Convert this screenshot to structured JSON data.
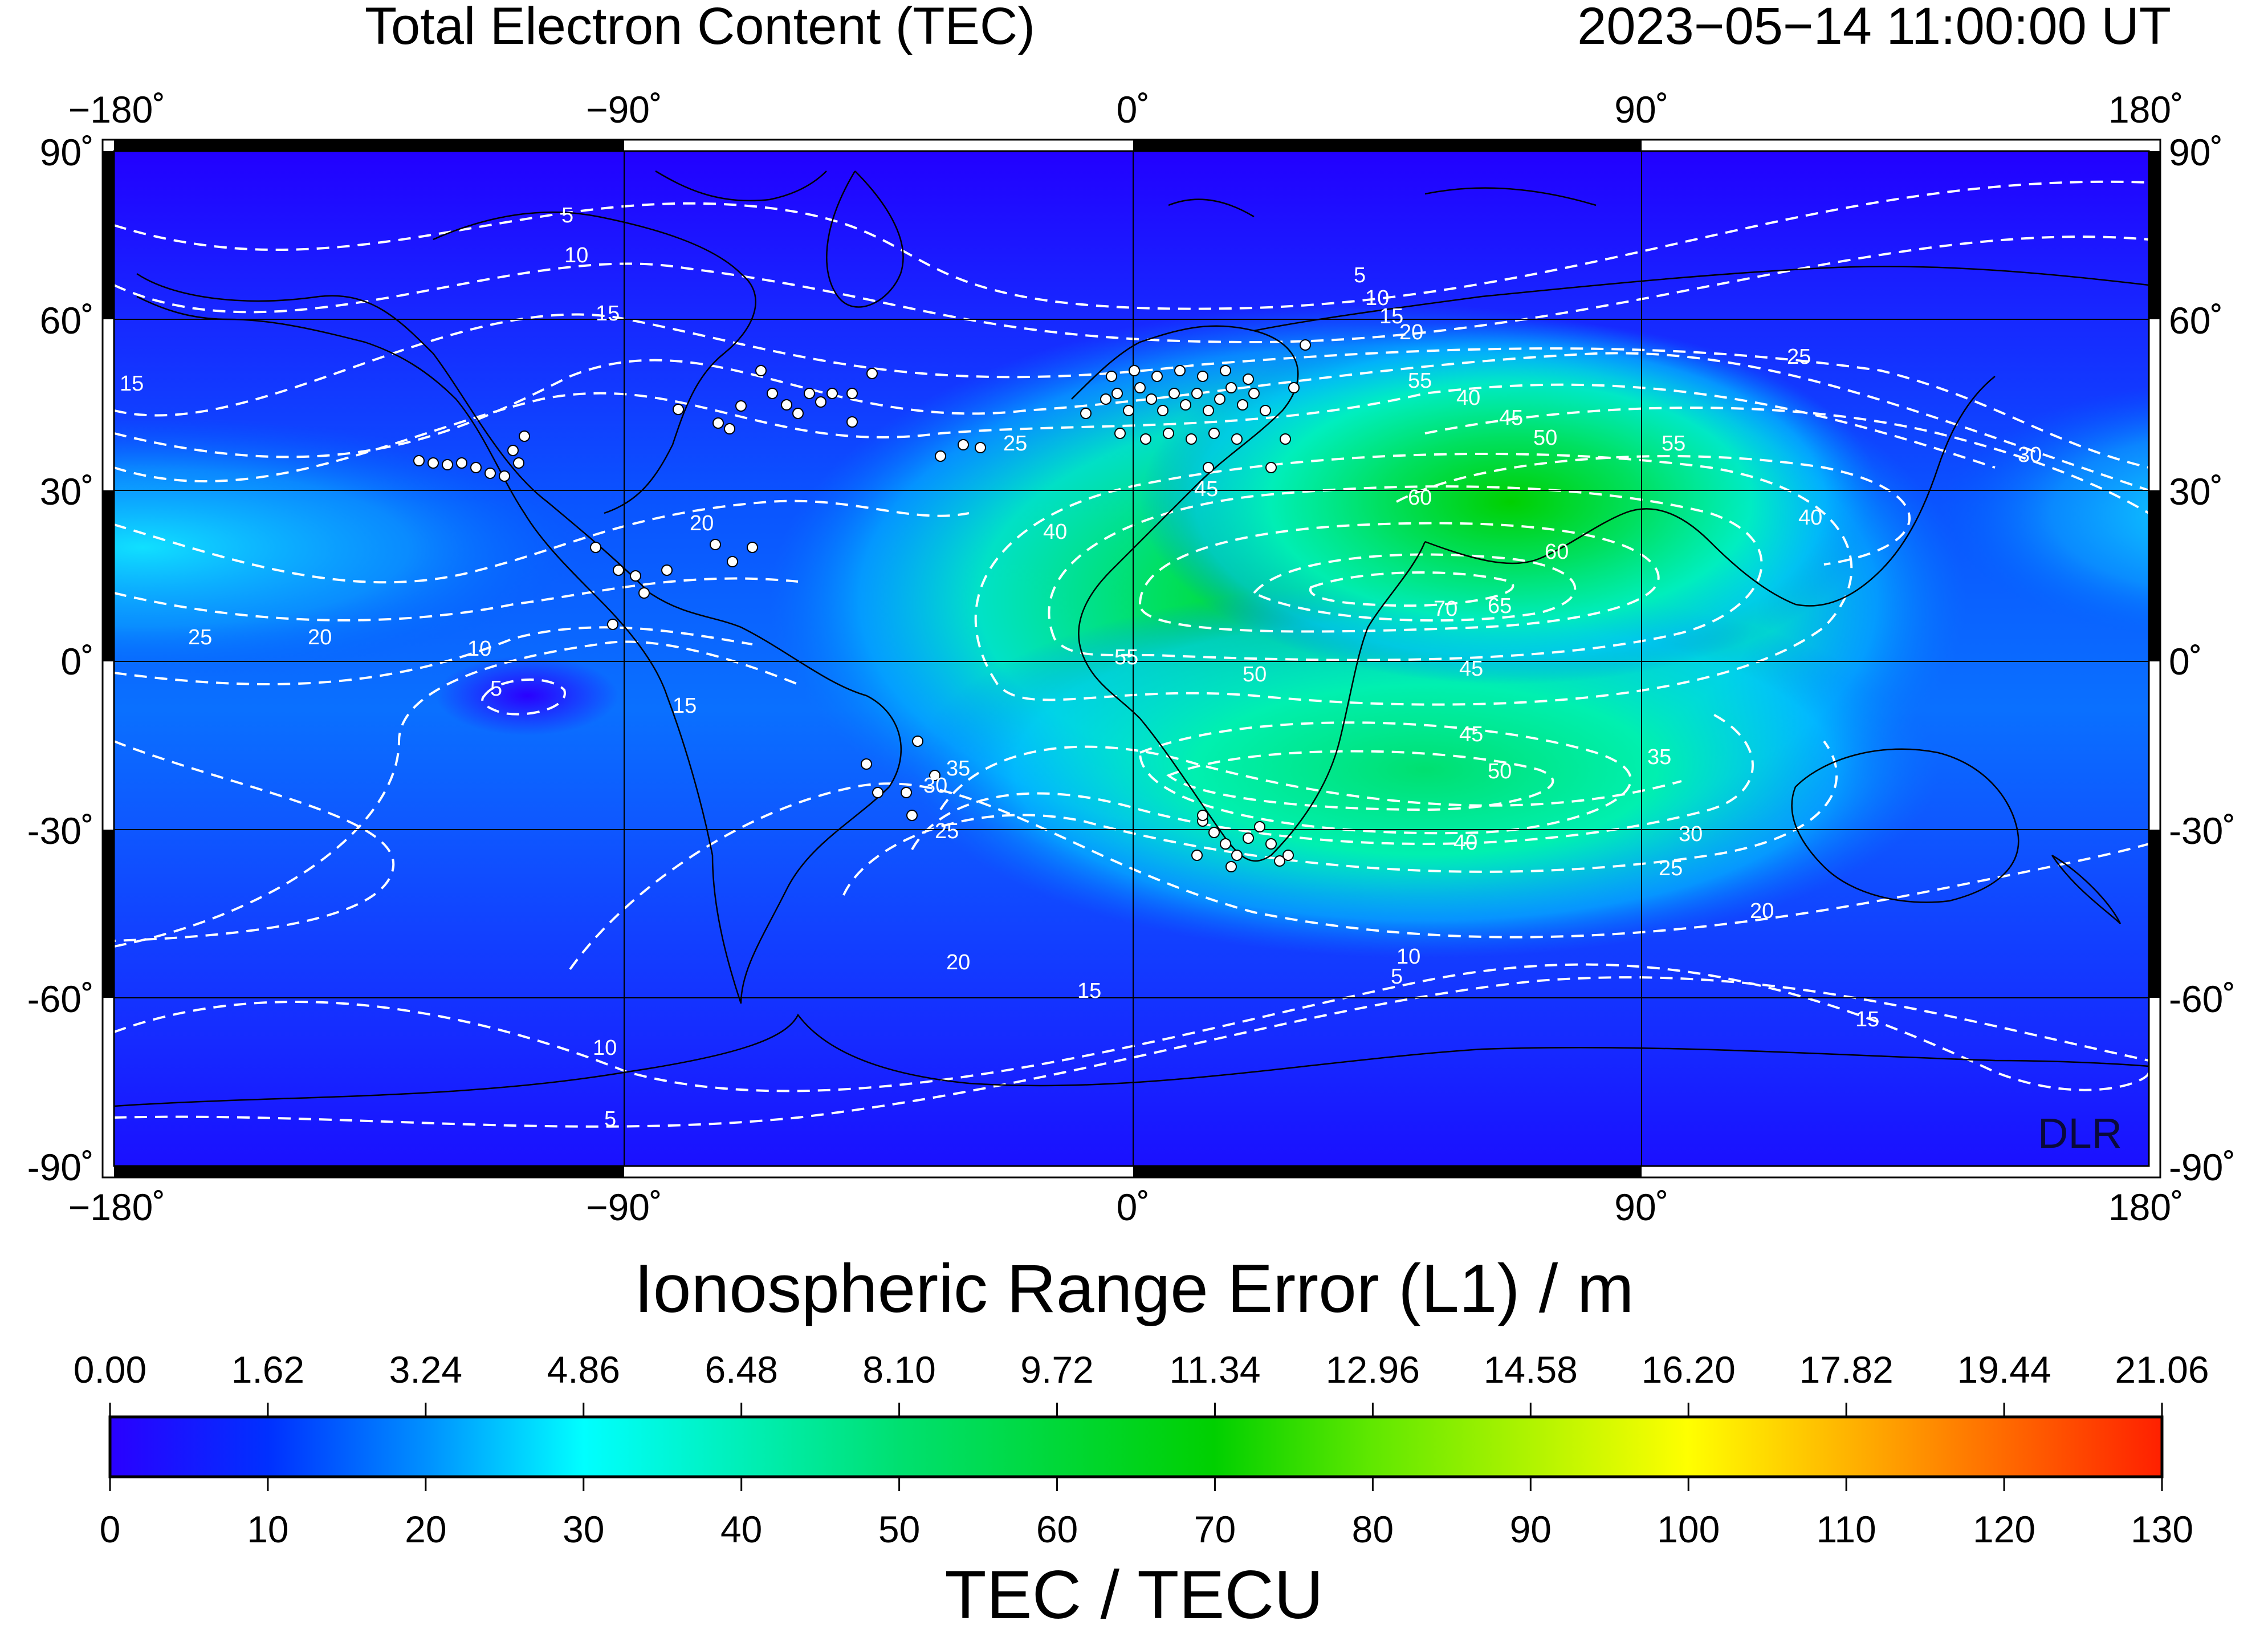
{
  "header": {
    "title": "Total Electron Content (TEC)",
    "timestamp": "2023−05−14  11:00:00 UT"
  },
  "map": {
    "lon_ticks": [
      "−180˚",
      "−90˚",
      "0˚",
      "90˚",
      "180˚"
    ],
    "lat_ticks": [
      "90˚",
      "60˚",
      "30˚",
      "0˚",
      "-30˚",
      "-60˚",
      "-90˚"
    ],
    "watermark": "DLR",
    "contour_levels": [
      "5",
      "10",
      "15",
      "20",
      "25",
      "30",
      "35",
      "40",
      "45",
      "50",
      "55",
      "60",
      "65",
      "70"
    ],
    "contour_color": "#ffffff"
  },
  "colorbar": {
    "range_title": "Ionospheric Range Error (L1) / m",
    "range_ticks": [
      "0.00",
      "1.62",
      "3.24",
      "4.86",
      "6.48",
      "8.10",
      "9.72",
      "11.34",
      "12.96",
      "14.58",
      "16.20",
      "17.82",
      "19.44",
      "21.06"
    ],
    "tec_ticks": [
      "0",
      "10",
      "20",
      "30",
      "40",
      "50",
      "60",
      "70",
      "80",
      "90",
      "100",
      "110",
      "120",
      "130"
    ],
    "tec_title": "TEC / TECU",
    "stops": [
      "#2a00ff",
      "#0040ff",
      "#0090ff",
      "#00ffff",
      "#00e080",
      "#00d000",
      "#80f000",
      "#ffff00",
      "#ff9000",
      "#ff2000"
    ]
  }
}
